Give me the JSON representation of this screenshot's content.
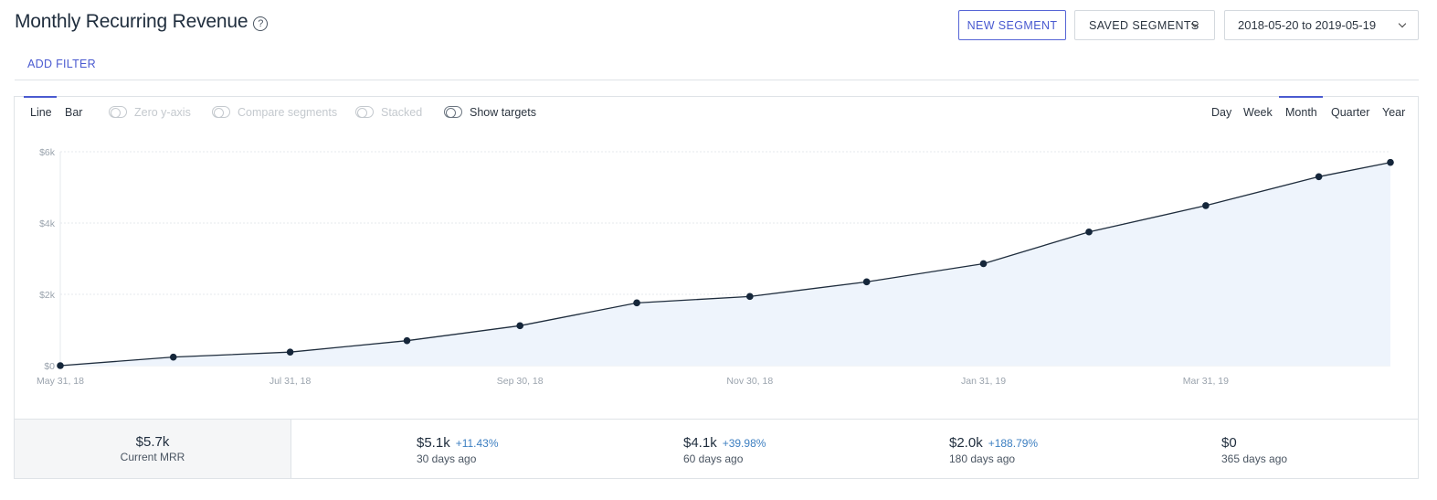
{
  "header": {
    "title": "Monthly Recurring Revenue",
    "help_glyph": "?"
  },
  "toolbar": {
    "new_segment": "NEW SEGMENT",
    "saved_segments": "SAVED SEGMENTS",
    "date_range": "2018-05-20 to 2019-05-19"
  },
  "filter": {
    "add_filter": "ADD FILTER"
  },
  "chart_controls": {
    "line": "Line",
    "bar": "Bar",
    "zero_y_axis": "Zero y-axis",
    "compare_segments": "Compare segments",
    "stacked": "Stacked",
    "show_targets": "Show targets",
    "intervals": [
      "Day",
      "Week",
      "Month",
      "Quarter",
      "Year"
    ],
    "selected_interval": "Month",
    "selected_type": "Line"
  },
  "chart_data": {
    "type": "area",
    "x": [
      "2018-05-31",
      "2018-06-30",
      "2018-07-31",
      "2018-08-31",
      "2018-09-30",
      "2018-10-31",
      "2018-11-30",
      "2018-12-31",
      "2019-01-31",
      "2019-02-28",
      "2019-03-31",
      "2019-04-30",
      "2019-05-19"
    ],
    "x_tick_labels": [
      "May 31, 18",
      "Jul 31, 18",
      "Sep 30, 18",
      "Nov 30, 18",
      "Jan 31, 19",
      "Mar 31, 19"
    ],
    "x_tick_dates": [
      "2018-05-31",
      "2018-07-31",
      "2018-09-30",
      "2018-11-30",
      "2019-01-31",
      "2019-03-31"
    ],
    "y_tick_labels": [
      "$0",
      "$2k",
      "$4k",
      "$6k"
    ],
    "y_tick_values": [
      0,
      2000,
      4000,
      6000
    ],
    "series": [
      {
        "values": [
          0,
          240,
          380,
          700,
          1120,
          1760,
          1940,
          2350,
          2860,
          3750,
          4490,
          5300,
          5700
        ]
      }
    ],
    "ylim": [
      0,
      6000
    ],
    "grid": true,
    "colors": {
      "line": "#1f2d3d",
      "fill": "#eef4fc",
      "marker": "#15263a",
      "grid": "#e6e9ec"
    }
  },
  "stats": {
    "current": {
      "value": "$5.7k",
      "label": "Current MRR"
    },
    "items": [
      {
        "value": "$5.1k",
        "change": "+11.43%",
        "label": "30 days ago"
      },
      {
        "value": "$4.1k",
        "change": "+39.98%",
        "label": "60 days ago"
      },
      {
        "value": "$2.0k",
        "change": "+188.79%",
        "label": "180 days ago"
      },
      {
        "value": "$0",
        "change": "",
        "label": "365 days ago"
      }
    ]
  },
  "colors": {
    "accent": "#4a5ad0",
    "change_positive": "#3d7fc1"
  }
}
